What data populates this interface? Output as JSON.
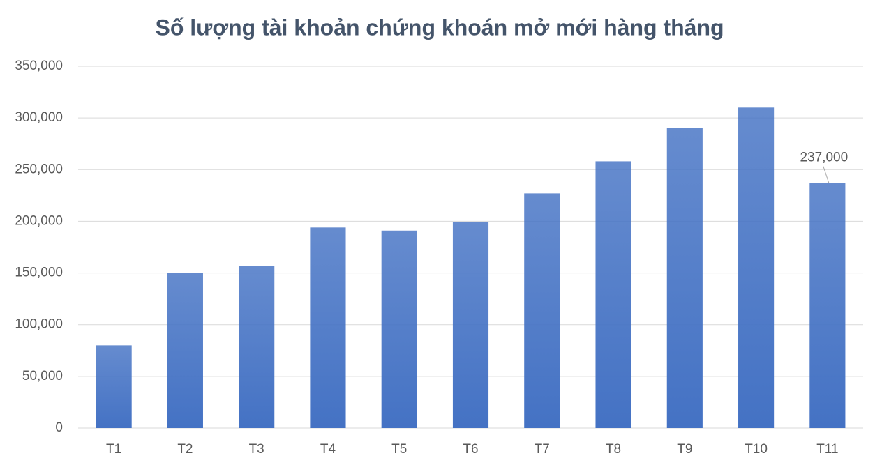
{
  "chart_data": {
    "type": "bar",
    "title": "Số lượng tài khoản chứng khoán mở mới hàng tháng",
    "categories": [
      "T1",
      "T2",
      "T3",
      "T4",
      "T5",
      "T6",
      "T7",
      "T8",
      "T9",
      "T10",
      "T11"
    ],
    "values": [
      80000,
      150000,
      157000,
      194000,
      191000,
      199000,
      227000,
      258000,
      290000,
      310000,
      237000
    ],
    "value_labels": [
      null,
      null,
      null,
      null,
      null,
      null,
      null,
      null,
      null,
      null,
      "237,000"
    ],
    "color": "#4472c4",
    "ylim": [
      0,
      350000
    ],
    "yticks": [
      0,
      {
        "value": 50000,
        "label": "50,000"
      },
      {
        "value": 100000,
        "label": "100,000"
      },
      {
        "value": 150000,
        "label": "150,000"
      },
      {
        "value": 200000,
        "label": "200,000"
      },
      {
        "value": 250000,
        "label": "250,000"
      },
      {
        "value": 300000,
        "label": "300,000"
      },
      {
        "value": 350000,
        "label": "350,000"
      }
    ],
    "grid": true
  }
}
